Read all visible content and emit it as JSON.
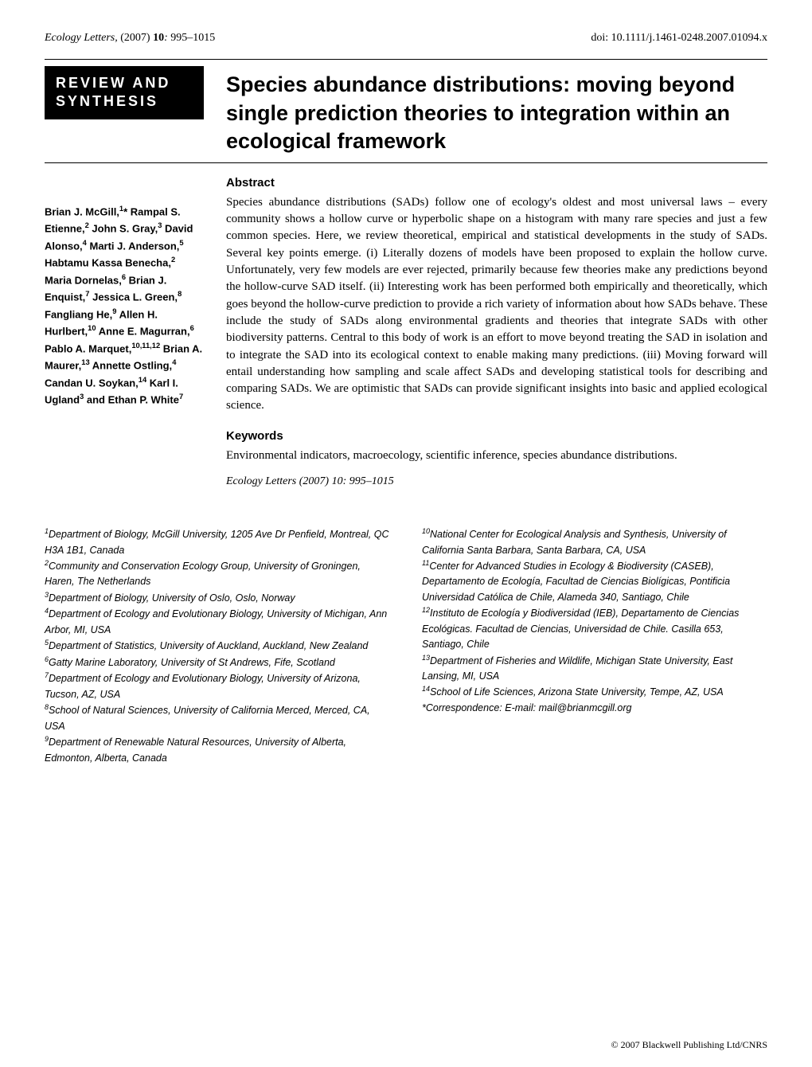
{
  "header": {
    "journal": "Ecology Letters",
    "year": "(2007)",
    "volume": "10",
    "pages": "995–1015",
    "doi": "doi: 10.1111/j.1461-0248.2007.01094.x"
  },
  "badge": {
    "line1": "REVIEW AND",
    "line2": "SYNTHESIS"
  },
  "title": "Species abundance distributions: moving beyond single prediction theories to integration within an ecological framework",
  "authors_html": "Brian J. McGill,<sup>1</sup>* Rampal S. Etienne,<sup>2</sup> John S. Gray,<sup>3</sup> David Alonso,<sup>4</sup> Marti J. Anderson,<sup>5</sup> Habtamu Kassa Benecha,<sup>2</sup> Maria Dornelas,<sup>6</sup> Brian J. Enquist,<sup>7</sup> Jessica L. Green,<sup>8</sup> Fangliang He,<sup>9</sup> Allen H. Hurlbert,<sup>10</sup> Anne E. Magurran,<sup>6</sup> Pablo A. Marquet,<sup>10,11,12</sup> Brian A. Maurer,<sup>13</sup> Annette Ostling,<sup>4</sup> Candan U. Soykan,<sup>14</sup> Karl I. Ugland<sup>3</sup> and Ethan P. White<sup>7</sup>",
  "abstract": {
    "heading": "Abstract",
    "text": "Species abundance distributions (SADs) follow one of ecology's oldest and most universal laws – every community shows a hollow curve or hyperbolic shape on a histogram with many rare species and just a few common species. Here, we review theoretical, empirical and statistical developments in the study of SADs. Several key points emerge. (i) Literally dozens of models have been proposed to explain the hollow curve. Unfortunately, very few models are ever rejected, primarily because few theories make any predictions beyond the hollow-curve SAD itself. (ii) Interesting work has been performed both empirically and theoretically, which goes beyond the hollow-curve prediction to provide a rich variety of information about how SADs behave. These include the study of SADs along environmental gradients and theories that integrate SADs with other biodiversity patterns. Central to this body of work is an effort to move beyond treating the SAD in isolation and to integrate the SAD into its ecological context to enable making many predictions. (iii) Moving forward will entail understanding how sampling and scale affect SADs and developing statistical tools for describing and comparing SADs. We are optimistic that SADs can provide significant insights into basic and applied ecological science."
  },
  "keywords": {
    "heading": "Keywords",
    "text": "Environmental indicators, macroecology, scientific inference, species abundance distributions."
  },
  "citation": "Ecology Letters (2007) 10: 995–1015",
  "affiliations_left": [
    "<sup>1</sup>Department of Biology, McGill University, 1205 Ave Dr Penfield, Montreal, QC H3A 1B1, Canada",
    "<sup>2</sup>Community and Conservation Ecology Group, University of Groningen, Haren, The Netherlands",
    "<sup>3</sup>Department of Biology, University of Oslo, Oslo, Norway",
    "<sup>4</sup>Department of Ecology and Evolutionary Biology, University of Michigan, Ann Arbor, MI, USA",
    "<sup>5</sup>Department of Statistics, University of Auckland, Auckland, New Zealand",
    "<sup>6</sup>Gatty Marine Laboratory, University of St Andrews, Fife, Scotland",
    "<sup>7</sup>Department of Ecology and Evolutionary Biology, University of Arizona, Tucson, AZ, USA",
    "<sup>8</sup>School of Natural Sciences, University of California Merced, Merced, CA, USA",
    "<sup>9</sup>Department of Renewable Natural Resources, University of Alberta, Edmonton, Alberta, Canada"
  ],
  "affiliations_right": [
    "<sup>10</sup>National Center for Ecological Analysis and Synthesis, University of California Santa Barbara, Santa Barbara, CA, USA",
    "<sup>11</sup>Center for Advanced Studies in Ecology & Biodiversity (CASEB), Departamento de Ecología, Facultad de Ciencias Biolígicas, Pontificia Universidad Católica de Chile, Alameda 340, Santiago, Chile",
    "<sup>12</sup>Instituto de Ecología y Biodiversidad (IEB), Departamento de Ciencias Ecológicas. Facultad de Ciencias, Universidad de Chile. Casilla 653, Santiago, Chile",
    "<sup>13</sup>Department of Fisheries and Wildlife, Michigan State University, East Lansing, MI, USA",
    "<sup>14</sup>School of Life Sciences, Arizona State University, Tempe, AZ, USA",
    "*Correspondence: E-mail: mail@brianmcgill.org"
  ],
  "footer": "© 2007 Blackwell Publishing Ltd/CNRS"
}
